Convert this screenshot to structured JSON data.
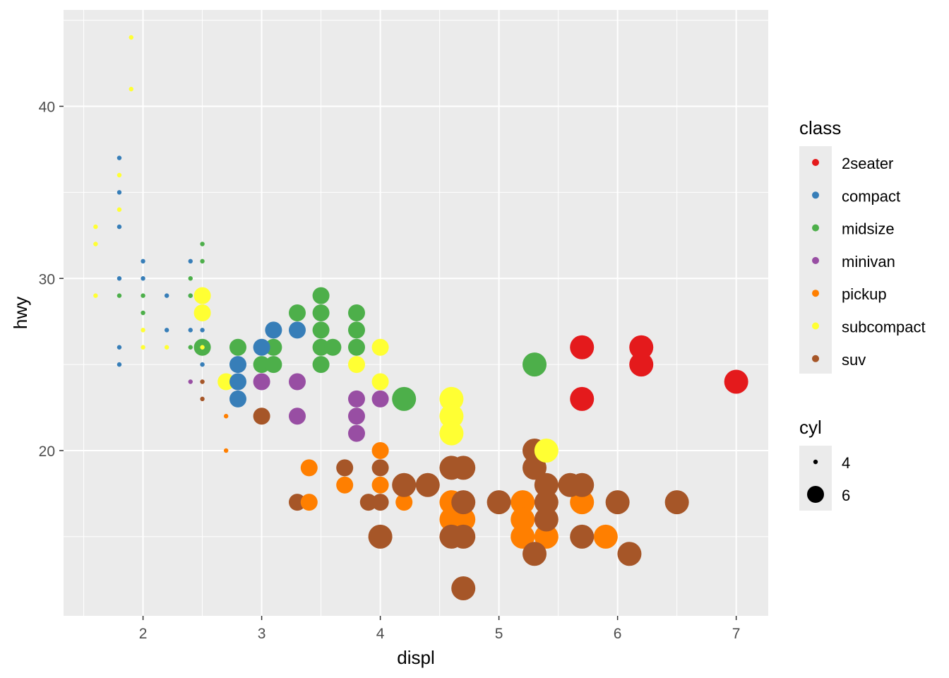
{
  "chart_data": {
    "type": "scatter",
    "title": "",
    "xlabel": "displ",
    "ylabel": "hwy",
    "xlim": [
      1.33,
      7.27
    ],
    "ylim": [
      10.4,
      45.6
    ],
    "x_ticks": [
      2,
      3,
      4,
      5,
      6,
      7
    ],
    "y_ticks": [
      20,
      30,
      40
    ],
    "grid": true,
    "legend_position": "right",
    "color_legend": {
      "title": "class",
      "entries": [
        {
          "label": "2seater",
          "color": "#E41A1C"
        },
        {
          "label": "compact",
          "color": "#377EB8"
        },
        {
          "label": "midsize",
          "color": "#4DAF4A"
        },
        {
          "label": "minivan",
          "color": "#984EA3"
        },
        {
          "label": "pickup",
          "color": "#FF7F00"
        },
        {
          "label": "subcompact",
          "color": "#FFFF33"
        },
        {
          "label": "suv",
          "color": "#A65628"
        }
      ]
    },
    "size_legend": {
      "title": "cyl",
      "entries": [
        {
          "label": "4",
          "value": 4
        },
        {
          "label": "6",
          "value": 6
        }
      ]
    },
    "points": [
      [
        1.6,
        33,
        "subcompact",
        4
      ],
      [
        1.6,
        32,
        "subcompact",
        4
      ],
      [
        1.6,
        29,
        "subcompact",
        4
      ],
      [
        1.8,
        36,
        "subcompact",
        4
      ],
      [
        1.8,
        34,
        "subcompact",
        4
      ],
      [
        1.9,
        44,
        "subcompact",
        4
      ],
      [
        1.9,
        41,
        "subcompact",
        4
      ],
      [
        2.0,
        27,
        "subcompact",
        4
      ],
      [
        2.0,
        26,
        "subcompact",
        4
      ],
      [
        2.2,
        26,
        "subcompact",
        4
      ],
      [
        1.8,
        37,
        "compact",
        4
      ],
      [
        1.8,
        35,
        "compact",
        4
      ],
      [
        1.8,
        33,
        "compact",
        4
      ],
      [
        1.8,
        30,
        "compact",
        4
      ],
      [
        1.8,
        26,
        "compact",
        4
      ],
      [
        1.8,
        25,
        "compact",
        4
      ],
      [
        2.0,
        31,
        "compact",
        4
      ],
      [
        2.0,
        30,
        "compact",
        4
      ],
      [
        2.2,
        29,
        "compact",
        4
      ],
      [
        2.2,
        27,
        "compact",
        4
      ],
      [
        2.4,
        31,
        "compact",
        4
      ],
      [
        2.4,
        29,
        "compact",
        4
      ],
      [
        2.4,
        27,
        "compact",
        4
      ],
      [
        2.5,
        27,
        "compact",
        4
      ],
      [
        2.5,
        25,
        "compact",
        4
      ],
      [
        1.8,
        29,
        "midsize",
        4
      ],
      [
        2.0,
        29,
        "midsize",
        4
      ],
      [
        2.0,
        28,
        "midsize",
        4
      ],
      [
        2.4,
        30,
        "midsize",
        4
      ],
      [
        2.4,
        29,
        "midsize",
        4
      ],
      [
        2.4,
        26,
        "midsize",
        4
      ],
      [
        2.5,
        32,
        "midsize",
        4
      ],
      [
        2.5,
        31,
        "midsize",
        4
      ],
      [
        2.4,
        24,
        "minivan",
        4
      ],
      [
        2.5,
        24,
        "suv",
        4
      ],
      [
        2.5,
        23,
        "suv",
        4
      ],
      [
        2.7,
        22,
        "pickup",
        4
      ],
      [
        2.7,
        20,
        "pickup",
        4
      ],
      [
        2.5,
        29,
        "subcompact",
        6
      ],
      [
        2.5,
        28,
        "subcompact",
        6
      ],
      [
        2.7,
        24,
        "subcompact",
        6
      ],
      [
        3.8,
        25,
        "subcompact",
        6
      ],
      [
        4.0,
        26,
        "subcompact",
        6
      ],
      [
        4.0,
        24,
        "subcompact",
        6
      ],
      [
        2.5,
        26,
        "midsize",
        6
      ],
      [
        2.8,
        26,
        "midsize",
        6
      ],
      [
        3.0,
        25,
        "midsize",
        6
      ],
      [
        3.1,
        26,
        "midsize",
        6
      ],
      [
        3.1,
        25,
        "midsize",
        6
      ],
      [
        3.3,
        28,
        "midsize",
        6
      ],
      [
        3.5,
        29,
        "midsize",
        6
      ],
      [
        3.5,
        28,
        "midsize",
        6
      ],
      [
        3.5,
        27,
        "midsize",
        6
      ],
      [
        3.5,
        26,
        "midsize",
        6
      ],
      [
        3.5,
        25,
        "midsize",
        6
      ],
      [
        3.6,
        26,
        "midsize",
        6
      ],
      [
        3.8,
        28,
        "midsize",
        6
      ],
      [
        3.8,
        27,
        "midsize",
        6
      ],
      [
        3.8,
        26,
        "midsize",
        6
      ],
      [
        2.5,
        26,
        "subcompact",
        4
      ],
      [
        2.8,
        25,
        "compact",
        6
      ],
      [
        2.8,
        24,
        "compact",
        6
      ],
      [
        2.8,
        23,
        "compact",
        6
      ],
      [
        3.0,
        26,
        "compact",
        6
      ],
      [
        3.1,
        27,
        "compact",
        6
      ],
      [
        3.3,
        27,
        "compact",
        6
      ],
      [
        3.0,
        24,
        "minivan",
        6
      ],
      [
        3.3,
        24,
        "minivan",
        6
      ],
      [
        3.3,
        22,
        "minivan",
        6
      ],
      [
        3.8,
        23,
        "minivan",
        6
      ],
      [
        3.8,
        22,
        "minivan",
        6
      ],
      [
        3.8,
        21,
        "minivan",
        6
      ],
      [
        4.0,
        23,
        "minivan",
        6
      ],
      [
        3.0,
        22,
        "suv",
        6
      ],
      [
        4.0,
        19,
        "suv",
        6
      ],
      [
        4.0,
        17,
        "suv",
        6
      ],
      [
        3.7,
        19,
        "suv",
        6
      ],
      [
        3.3,
        17,
        "suv",
        6
      ],
      [
        3.9,
        17,
        "suv",
        6
      ],
      [
        3.4,
        19,
        "pickup",
        6
      ],
      [
        3.4,
        17,
        "pickup",
        6
      ],
      [
        3.7,
        18,
        "pickup",
        6
      ],
      [
        4.0,
        20,
        "pickup",
        6
      ],
      [
        4.0,
        18,
        "pickup",
        6
      ],
      [
        4.2,
        17,
        "pickup",
        6
      ],
      [
        4.2,
        23,
        "midsize",
        8
      ],
      [
        5.3,
        25,
        "midsize",
        8
      ],
      [
        4.6,
        17,
        "pickup",
        8
      ],
      [
        4.6,
        16,
        "pickup",
        8
      ],
      [
        4.7,
        16,
        "pickup",
        8
      ],
      [
        5.2,
        17,
        "pickup",
        8
      ],
      [
        5.2,
        16,
        "pickup",
        8
      ],
      [
        5.2,
        15,
        "pickup",
        8
      ],
      [
        5.4,
        15,
        "pickup",
        8
      ],
      [
        5.7,
        17,
        "pickup",
        8
      ],
      [
        5.9,
        15,
        "pickup",
        8
      ],
      [
        4.0,
        15,
        "suv",
        8
      ],
      [
        4.2,
        18,
        "suv",
        8
      ],
      [
        4.4,
        18,
        "suv",
        8
      ],
      [
        4.6,
        19,
        "suv",
        8
      ],
      [
        4.7,
        19,
        "suv",
        8
      ],
      [
        4.7,
        17,
        "suv",
        8
      ],
      [
        4.6,
        15,
        "suv",
        8
      ],
      [
        4.7,
        15,
        "suv",
        8
      ],
      [
        4.7,
        12,
        "suv",
        8
      ],
      [
        5.0,
        17,
        "suv",
        8
      ],
      [
        5.3,
        20,
        "suv",
        8
      ],
      [
        5.3,
        19,
        "suv",
        8
      ],
      [
        5.3,
        14,
        "suv",
        8
      ],
      [
        5.4,
        18,
        "suv",
        8
      ],
      [
        5.4,
        17,
        "suv",
        8
      ],
      [
        5.4,
        16,
        "suv",
        8
      ],
      [
        5.6,
        18,
        "suv",
        8
      ],
      [
        5.7,
        18,
        "suv",
        8
      ],
      [
        5.7,
        15,
        "suv",
        8
      ],
      [
        6.0,
        17,
        "suv",
        8
      ],
      [
        6.1,
        14,
        "suv",
        8
      ],
      [
        6.5,
        17,
        "suv",
        8
      ],
      [
        4.6,
        23,
        "subcompact",
        8
      ],
      [
        4.6,
        22,
        "subcompact",
        8
      ],
      [
        4.6,
        21,
        "subcompact",
        8
      ],
      [
        5.4,
        20,
        "subcompact",
        8
      ],
      [
        5.7,
        26,
        "2seater",
        8
      ],
      [
        5.7,
        23,
        "2seater",
        8
      ],
      [
        6.2,
        26,
        "2seater",
        8
      ],
      [
        6.2,
        25,
        "2seater",
        8
      ],
      [
        7.0,
        24,
        "2seater",
        8
      ]
    ]
  }
}
